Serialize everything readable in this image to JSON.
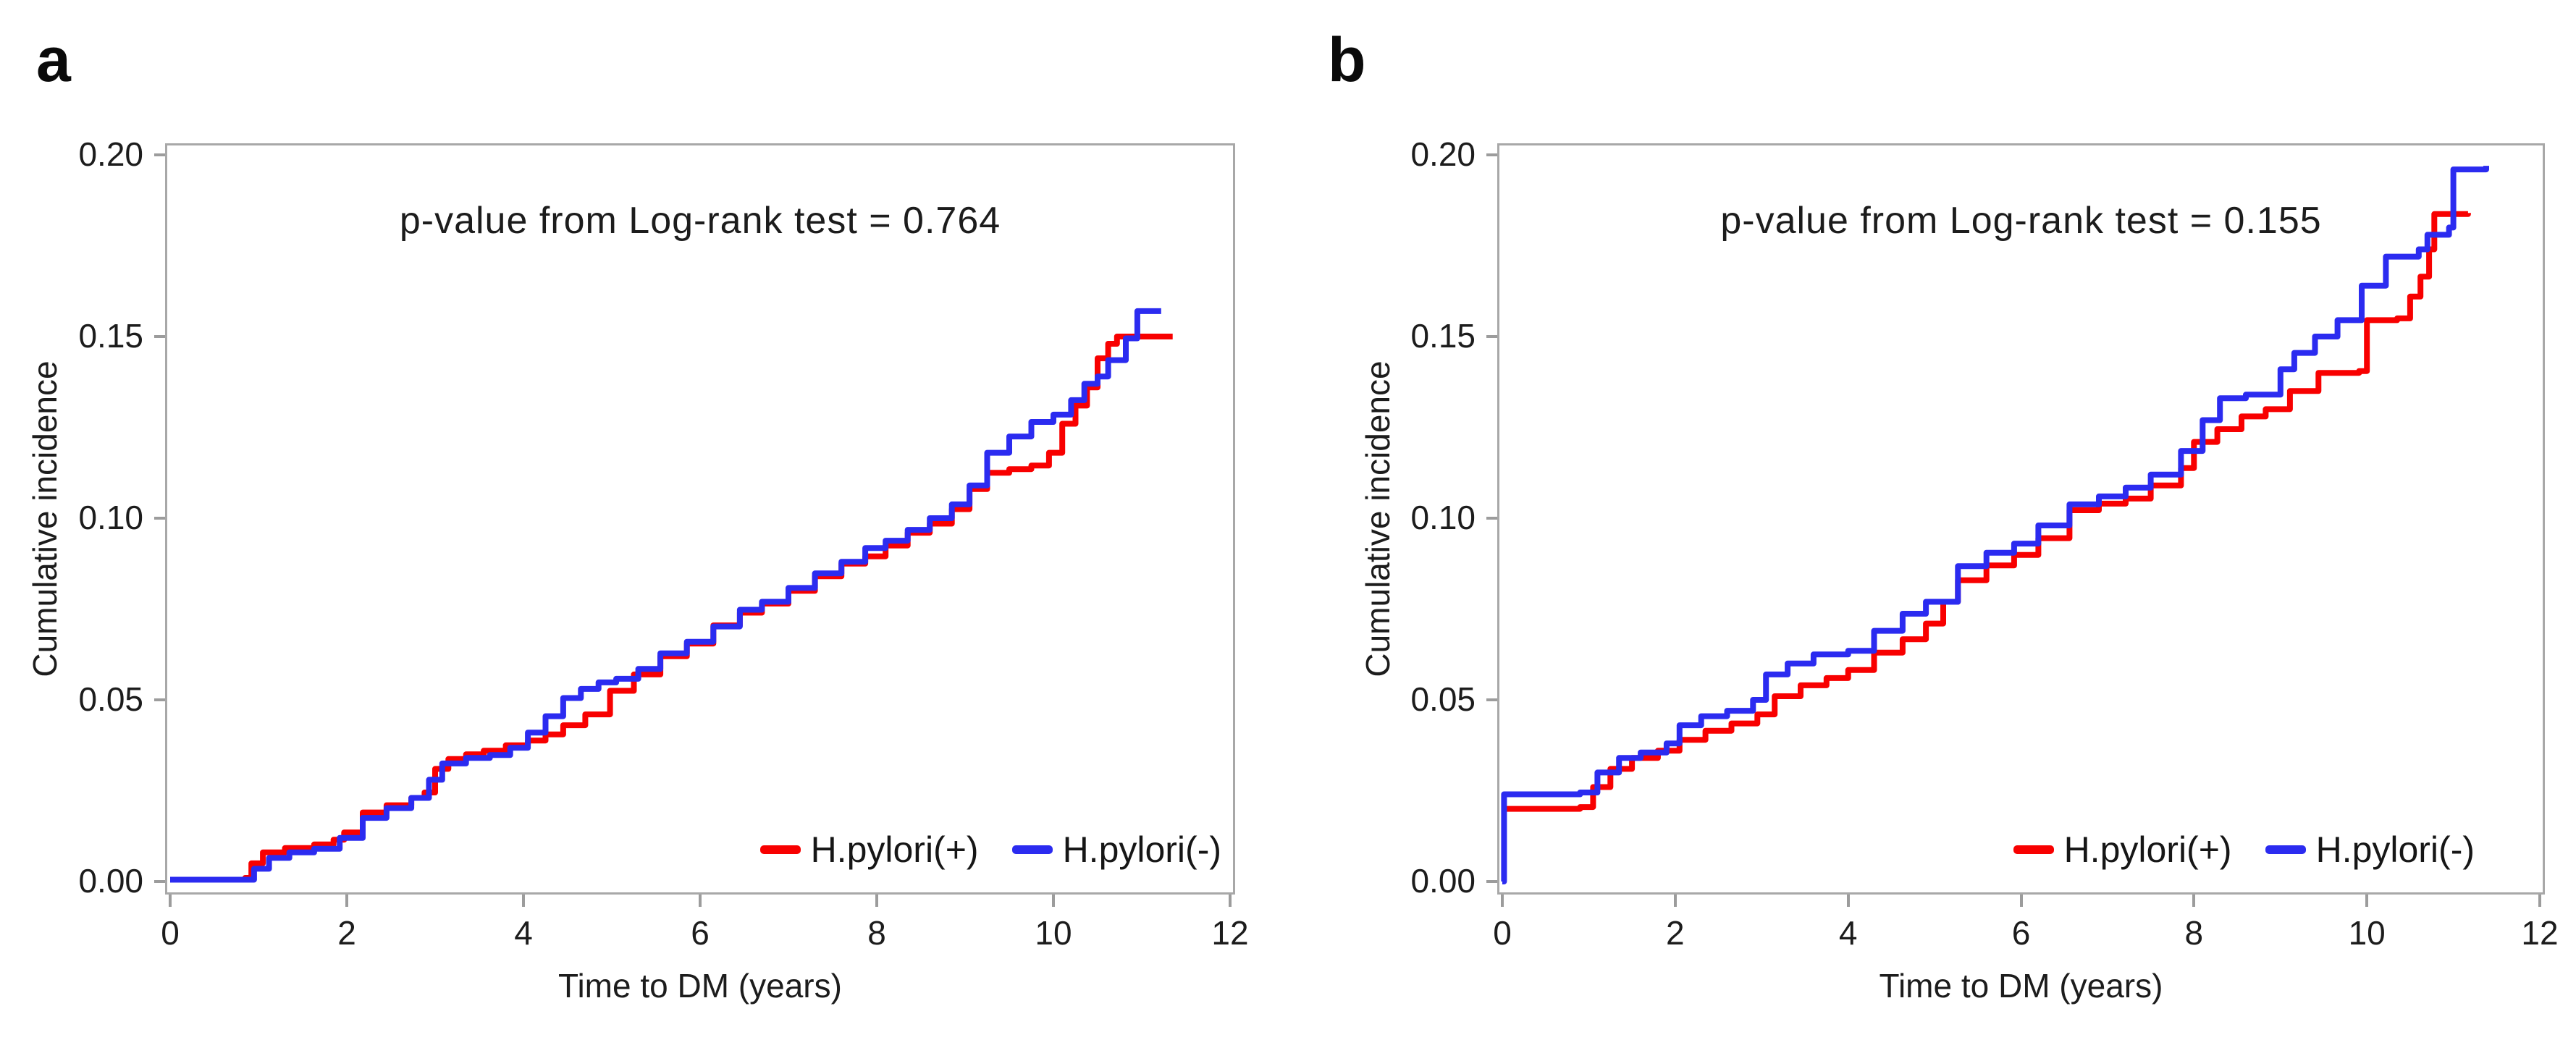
{
  "figure": {
    "background": "#ffffff",
    "frame_color": "#a8a8a8",
    "tick_color": "#9c9c9c",
    "text_color": "#1c1c1c"
  },
  "legend": {
    "positive_label": "H.pylori(+)",
    "negative_label": "H.pylori(-)"
  },
  "chart_data": [
    {
      "type": "line",
      "style": "step",
      "panel": "a",
      "title": "p-value from Log-rank test = 0.764",
      "xlabel": "Time to DM (years)",
      "ylabel": "Cumulative incidence",
      "xlim": [
        0,
        12
      ],
      "ylim": [
        0,
        0.2
      ],
      "x_ticks": [
        0,
        2,
        4,
        6,
        8,
        10,
        12
      ],
      "y_ticks": [
        0,
        0.05,
        0.1,
        0.15,
        0.2
      ],
      "grid": false,
      "legend_position": "bottom-right-inside",
      "series": [
        {
          "name": "H.pylori(+)",
          "color": "#f80000",
          "points": [
            [
              0,
              0.0005
            ],
            [
              0.85,
              0.001
            ],
            [
              0.92,
              0.005
            ],
            [
              1.05,
              0.008
            ],
            [
              1.3,
              0.0092
            ],
            [
              1.63,
              0.0102
            ],
            [
              1.85,
              0.0115
            ],
            [
              1.97,
              0.0135
            ],
            [
              2.18,
              0.019
            ],
            [
              2.45,
              0.021
            ],
            [
              2.73,
              0.023
            ],
            [
              2.88,
              0.0245
            ],
            [
              3.0,
              0.031
            ],
            [
              3.15,
              0.0337
            ],
            [
              3.35,
              0.035
            ],
            [
              3.55,
              0.036
            ],
            [
              3.8,
              0.0375
            ],
            [
              4.05,
              0.0388
            ],
            [
              4.25,
              0.0405
            ],
            [
              4.45,
              0.043
            ],
            [
              4.7,
              0.046
            ],
            [
              4.98,
              0.0525
            ],
            [
              5.25,
              0.057
            ],
            [
              5.55,
              0.062
            ],
            [
              5.85,
              0.0655
            ],
            [
              6.15,
              0.0705
            ],
            [
              6.45,
              0.074
            ],
            [
              6.7,
              0.0765
            ],
            [
              7.0,
              0.08
            ],
            [
              7.3,
              0.084
            ],
            [
              7.6,
              0.0875
            ],
            [
              7.87,
              0.0895
            ],
            [
              8.1,
              0.0925
            ],
            [
              8.35,
              0.096
            ],
            [
              8.6,
              0.0985
            ],
            [
              8.85,
              0.1025
            ],
            [
              9.05,
              0.108
            ],
            [
              9.25,
              0.1125
            ],
            [
              9.5,
              0.1135
            ],
            [
              9.75,
              0.1145
            ],
            [
              9.95,
              0.118
            ],
            [
              10.1,
              0.126
            ],
            [
              10.25,
              0.131
            ],
            [
              10.38,
              0.136
            ],
            [
              10.5,
              0.144
            ],
            [
              10.62,
              0.148
            ],
            [
              10.72,
              0.15
            ],
            [
              11.35,
              0.15
            ]
          ]
        },
        {
          "name": "H.pylori(-)",
          "color": "#2b2bf0",
          "points": [
            [
              0,
              0.0005
            ],
            [
              0.95,
              0.0035
            ],
            [
              1.12,
              0.0065
            ],
            [
              1.35,
              0.008
            ],
            [
              1.63,
              0.009
            ],
            [
              1.92,
              0.012
            ],
            [
              2.18,
              0.0175
            ],
            [
              2.45,
              0.0202
            ],
            [
              2.73,
              0.023
            ],
            [
              2.93,
              0.028
            ],
            [
              3.08,
              0.0325
            ],
            [
              3.35,
              0.034
            ],
            [
              3.62,
              0.0348
            ],
            [
              3.85,
              0.0368
            ],
            [
              4.05,
              0.041
            ],
            [
              4.25,
              0.0455
            ],
            [
              4.45,
              0.0505
            ],
            [
              4.65,
              0.053
            ],
            [
              4.85,
              0.0548
            ],
            [
              5.05,
              0.0558
            ],
            [
              5.3,
              0.0585
            ],
            [
              5.55,
              0.0628
            ],
            [
              5.85,
              0.066
            ],
            [
              6.15,
              0.0702
            ],
            [
              6.45,
              0.0748
            ],
            [
              6.7,
              0.077
            ],
            [
              7.0,
              0.0808
            ],
            [
              7.3,
              0.0848
            ],
            [
              7.6,
              0.088
            ],
            [
              7.87,
              0.0918
            ],
            [
              8.1,
              0.0938
            ],
            [
              8.35,
              0.0968
            ],
            [
              8.6,
              0.1
            ],
            [
              8.85,
              0.1038
            ],
            [
              9.05,
              0.109
            ],
            [
              9.25,
              0.118
            ],
            [
              9.5,
              0.1225
            ],
            [
              9.75,
              0.1265
            ],
            [
              10.0,
              0.1285
            ],
            [
              10.2,
              0.1325
            ],
            [
              10.35,
              0.137
            ],
            [
              10.5,
              0.139
            ],
            [
              10.62,
              0.1435
            ],
            [
              10.82,
              0.1495
            ],
            [
              10.95,
              0.157
            ],
            [
              11.22,
              0.157
            ]
          ]
        }
      ]
    },
    {
      "type": "line",
      "style": "step",
      "panel": "b",
      "title": "p-value from Log-rank test = 0.155",
      "xlabel": "Time to DM (years)",
      "ylabel": "Cumulative incidence",
      "xlim": [
        0,
        12
      ],
      "ylim": [
        0,
        0.2
      ],
      "x_ticks": [
        0,
        2,
        4,
        6,
        8,
        10,
        12
      ],
      "y_ticks": [
        0,
        0.05,
        0.1,
        0.15,
        0.2
      ],
      "grid": false,
      "legend_position": "bottom-right-inside",
      "series": [
        {
          "name": "H.pylori(+)",
          "color": "#f80000",
          "points": [
            [
              0,
              0.02
            ],
            [
              0.9,
              0.0205
            ],
            [
              1.05,
              0.026
            ],
            [
              1.25,
              0.031
            ],
            [
              1.5,
              0.034
            ],
            [
              1.8,
              0.036
            ],
            [
              2.05,
              0.039
            ],
            [
              2.35,
              0.0415
            ],
            [
              2.65,
              0.0435
            ],
            [
              2.95,
              0.046
            ],
            [
              3.15,
              0.051
            ],
            [
              3.45,
              0.054
            ],
            [
              3.75,
              0.056
            ],
            [
              4.0,
              0.0582
            ],
            [
              4.3,
              0.063
            ],
            [
              4.63,
              0.0667
            ],
            [
              4.9,
              0.071
            ],
            [
              5.1,
              0.077
            ],
            [
              5.27,
              0.0829
            ],
            [
              5.6,
              0.087
            ],
            [
              5.92,
              0.0899
            ],
            [
              6.2,
              0.0945
            ],
            [
              6.56,
              0.1022
            ],
            [
              6.9,
              0.104
            ],
            [
              7.21,
              0.1054
            ],
            [
              7.5,
              0.109
            ],
            [
              7.85,
              0.1138
            ],
            [
              8.0,
              0.121
            ],
            [
              8.27,
              0.1245
            ],
            [
              8.55,
              0.128
            ],
            [
              8.83,
              0.13
            ],
            [
              9.11,
              0.135
            ],
            [
              9.44,
              0.14
            ],
            [
              9.91,
              0.1405
            ],
            [
              10.0,
              0.1545
            ],
            [
              10.35,
              0.155
            ],
            [
              10.5,
              0.161
            ],
            [
              10.62,
              0.1665
            ],
            [
              10.72,
              0.174
            ],
            [
              10.78,
              0.1837
            ],
            [
              11.17,
              0.184
            ]
          ]
        },
        {
          "name": "H.pylori(-)",
          "color": "#2b2bf0",
          "points": [
            [
              0,
              0.0
            ],
            [
              0.02,
              0.024
            ],
            [
              0.9,
              0.0245
            ],
            [
              1.1,
              0.03
            ],
            [
              1.35,
              0.034
            ],
            [
              1.6,
              0.0355
            ],
            [
              1.9,
              0.038
            ],
            [
              2.05,
              0.043
            ],
            [
              2.3,
              0.0455
            ],
            [
              2.6,
              0.047
            ],
            [
              2.9,
              0.05
            ],
            [
              3.05,
              0.057
            ],
            [
              3.3,
              0.06
            ],
            [
              3.6,
              0.0625
            ],
            [
              4.0,
              0.0635
            ],
            [
              4.3,
              0.069
            ],
            [
              4.63,
              0.0737
            ],
            [
              4.9,
              0.077
            ],
            [
              5.27,
              0.0868
            ],
            [
              5.6,
              0.0905
            ],
            [
              5.92,
              0.093
            ],
            [
              6.2,
              0.098
            ],
            [
              6.56,
              0.1038
            ],
            [
              6.9,
              0.106
            ],
            [
              7.21,
              0.1084
            ],
            [
              7.5,
              0.112
            ],
            [
              7.85,
              0.1185
            ],
            [
              8.1,
              0.127
            ],
            [
              8.3,
              0.133
            ],
            [
              8.6,
              0.134
            ],
            [
              9.0,
              0.141
            ],
            [
              9.16,
              0.1455
            ],
            [
              9.4,
              0.15
            ],
            [
              9.66,
              0.1545
            ],
            [
              9.94,
              0.164
            ],
            [
              10.22,
              0.172
            ],
            [
              10.6,
              0.174
            ],
            [
              10.7,
              0.178
            ],
            [
              10.95,
              0.18
            ],
            [
              11.0,
              0.196
            ],
            [
              11.38,
              0.197
            ]
          ]
        }
      ]
    }
  ]
}
